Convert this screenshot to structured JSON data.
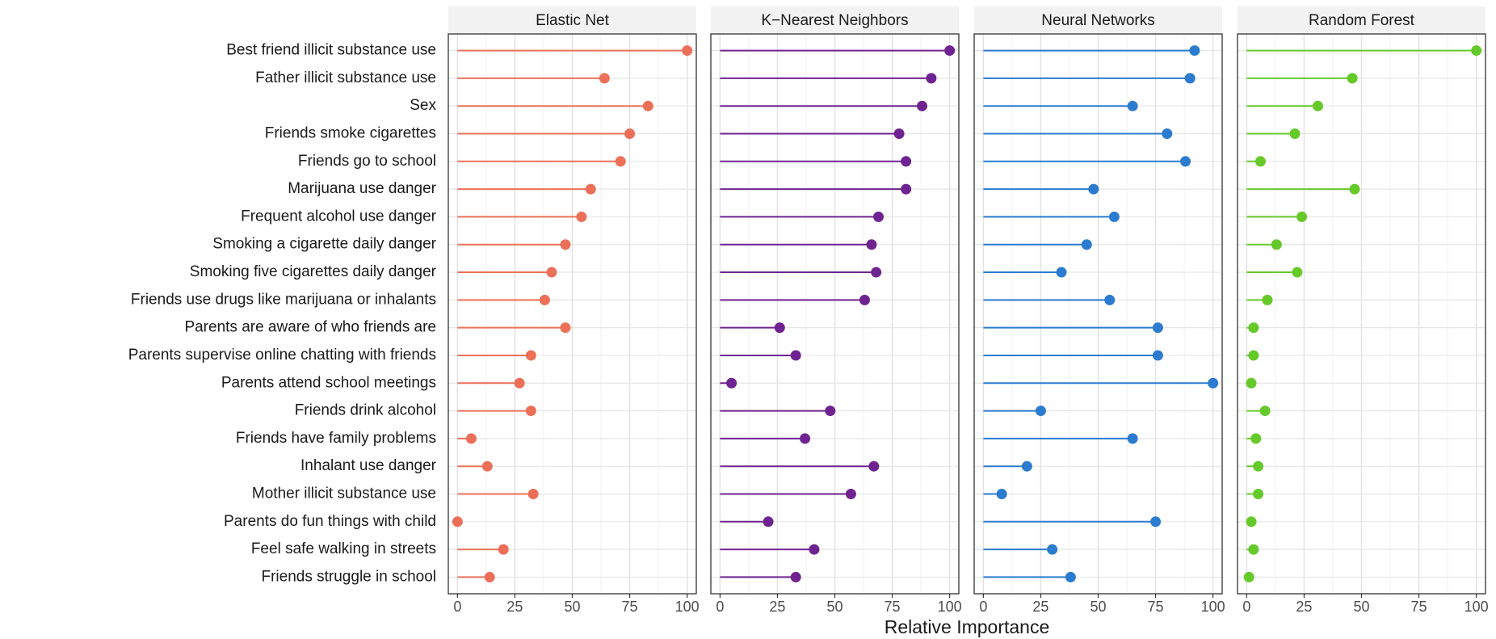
{
  "chart_data": {
    "type": "lollipop",
    "xlabel": "Relative Importance",
    "categories": [
      "Best friend illicit substance use",
      "Father illicit substance use",
      "Sex",
      "Friends smoke cigarettes",
      "Friends go to school",
      "Marijuana use danger",
      "Frequent alcohol use danger",
      "Smoking a cigarette daily danger",
      "Smoking five cigarettes daily danger",
      "Friends use drugs like marijuana or inhalants",
      "Parents are aware of who friends are",
      "Parents supervise online chatting with friends",
      "Parents attend school meetings",
      "Friends drink alcohol",
      "Friends have family problems",
      "Inhalant use danger",
      "Mother illicit substance use",
      "Parents do fun things with child",
      "Feel safe walking in streets",
      "Friends struggle in school"
    ],
    "series": [
      {
        "name": "Elastic Net",
        "color": "#ec7058",
        "values": [
          100,
          64,
          83,
          75,
          71,
          58,
          54,
          47,
          41,
          38,
          47,
          32,
          27,
          32,
          6,
          13,
          33,
          0,
          20,
          14
        ]
      },
      {
        "name": "K−Nearest Neighbors",
        "color": "#6f2391",
        "values": [
          100,
          92,
          88,
          78,
          81,
          81,
          69,
          66,
          68,
          63,
          26,
          33,
          5,
          48,
          37,
          67,
          57,
          21,
          41,
          33
        ]
      },
      {
        "name": "Neural Networks",
        "color": "#2b7bd0",
        "values": [
          92,
          90,
          65,
          80,
          88,
          48,
          57,
          45,
          34,
          55,
          76,
          76,
          100,
          25,
          65,
          19,
          8,
          75,
          30,
          38
        ]
      },
      {
        "name": "Random Forest",
        "color": "#66c92a",
        "values": [
          100,
          46,
          31,
          21,
          6,
          47,
          24,
          13,
          22,
          9,
          3,
          3,
          2,
          8,
          4,
          5,
          5,
          2,
          3,
          1
        ]
      }
    ],
    "xlim": [
      -4,
      104
    ],
    "xticks": [
      0,
      25,
      50,
      75,
      100
    ],
    "grid": true
  }
}
